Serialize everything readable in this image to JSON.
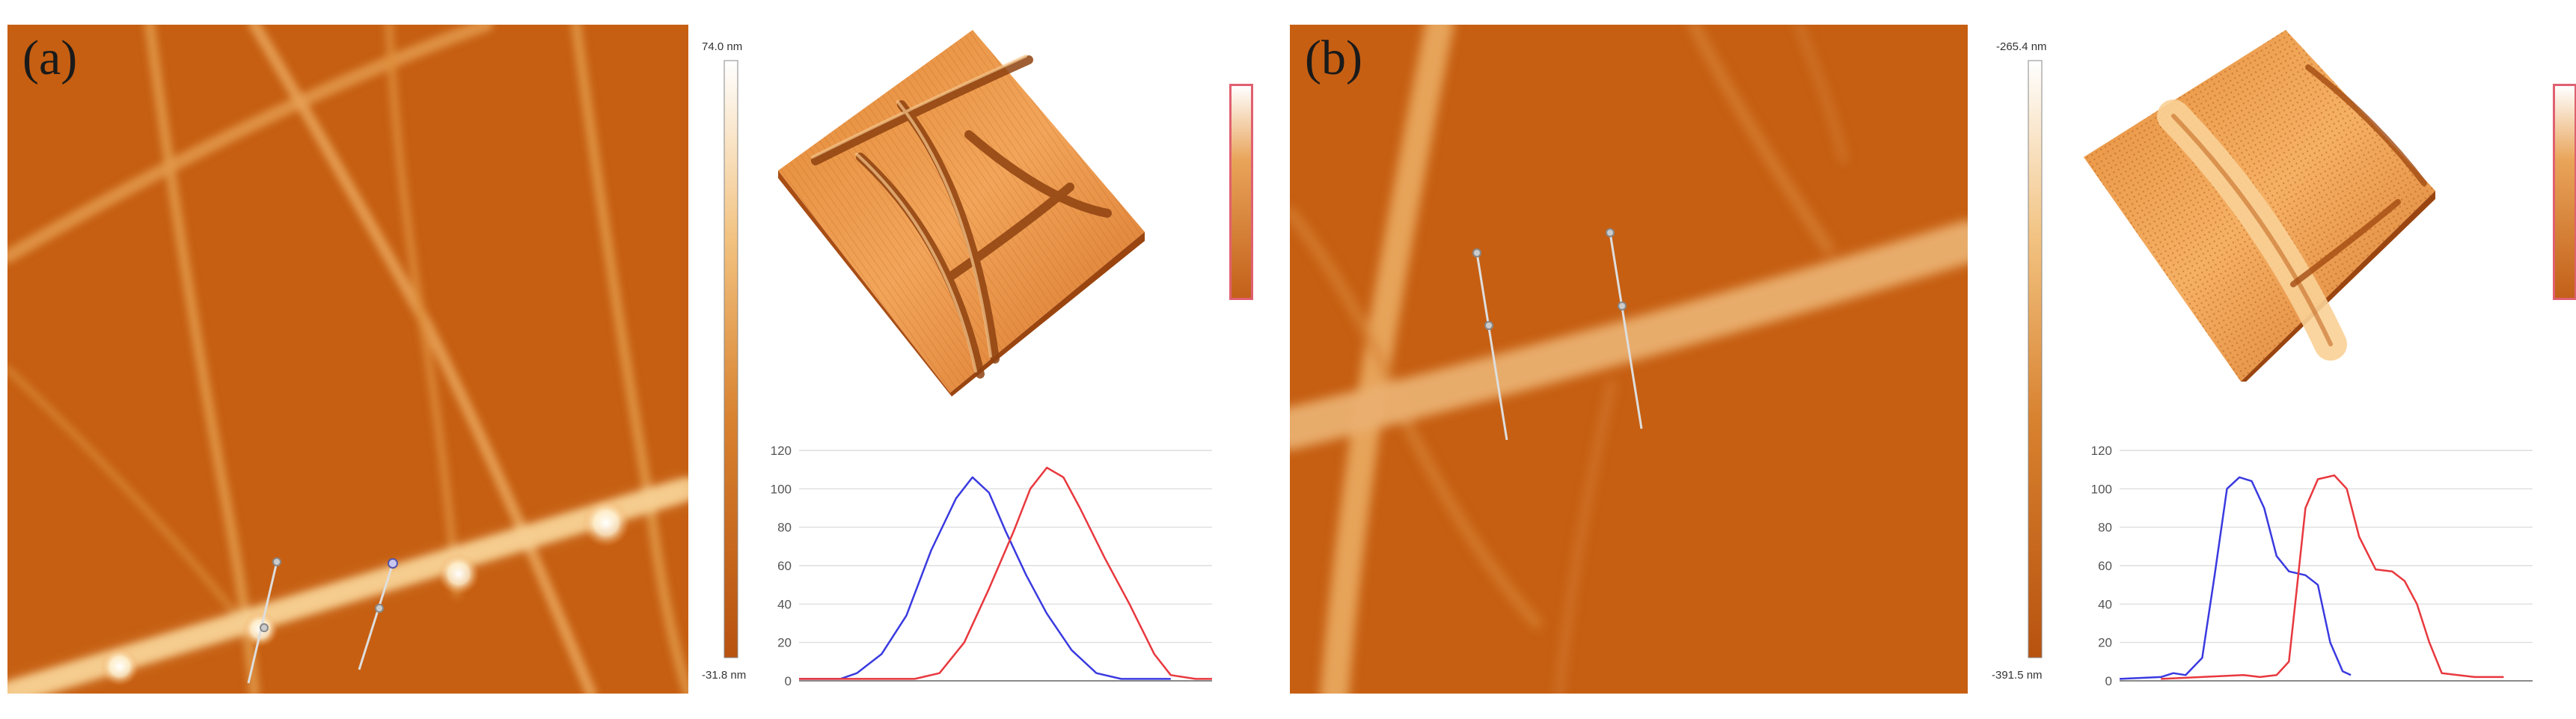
{
  "panels": [
    {
      "label": "(a)",
      "scale_max": "74.0 nm",
      "scale_min": "-31.8 nm"
    },
    {
      "label": "(b)",
      "scale_max": "-265.4 nm",
      "scale_min": "-391.5 nm"
    }
  ],
  "colors": {
    "afm_base": "#c65f12",
    "scale_top": "#ffffff",
    "scale_bottom": "#b8520f",
    "line_blue": "#3a3ae0",
    "line_red": "#e8383e",
    "legend_border": "#e06070"
  },
  "chart_data": [
    {
      "type": "line",
      "panel": "(a)",
      "ylim": [
        0,
        120
      ],
      "yticks": [
        "0",
        "20",
        "40",
        "60",
        "80",
        "100",
        "120"
      ],
      "grid": true,
      "series": [
        {
          "color": "blue",
          "values": [
            [
              0,
              1
            ],
            [
              10,
              1
            ],
            [
              14,
              4
            ],
            [
              20,
              14
            ],
            [
              26,
              34
            ],
            [
              32,
              68
            ],
            [
              38,
              95
            ],
            [
              42,
              106
            ],
            [
              46,
              98
            ],
            [
              50,
              78
            ],
            [
              55,
              55
            ],
            [
              60,
              35
            ],
            [
              66,
              16
            ],
            [
              72,
              4
            ],
            [
              78,
              1
            ],
            [
              90,
              1
            ]
          ]
        },
        {
          "color": "red",
          "values": [
            [
              0,
              1
            ],
            [
              28,
              1
            ],
            [
              34,
              4
            ],
            [
              40,
              20
            ],
            [
              46,
              48
            ],
            [
              52,
              78
            ],
            [
              56,
              100
            ],
            [
              60,
              111
            ],
            [
              64,
              106
            ],
            [
              68,
              90
            ],
            [
              74,
              64
            ],
            [
              80,
              40
            ],
            [
              86,
              14
            ],
            [
              90,
              3
            ],
            [
              96,
              1
            ],
            [
              100,
              1
            ]
          ]
        }
      ]
    },
    {
      "type": "line",
      "panel": "(b)",
      "ylim": [
        0,
        120
      ],
      "yticks": [
        "0",
        "20",
        "40",
        "60",
        "80",
        "100",
        "120"
      ],
      "grid": true,
      "series": [
        {
          "color": "blue",
          "values": [
            [
              0,
              1
            ],
            [
              10,
              2
            ],
            [
              13,
              4
            ],
            [
              16,
              3
            ],
            [
              20,
              12
            ],
            [
              23,
              55
            ],
            [
              26,
              100
            ],
            [
              29,
              106
            ],
            [
              32,
              104
            ],
            [
              35,
              90
            ],
            [
              38,
              65
            ],
            [
              41,
              57
            ],
            [
              45,
              55
            ],
            [
              48,
              50
            ],
            [
              51,
              20
            ],
            [
              54,
              5
            ],
            [
              56,
              3
            ]
          ]
        },
        {
          "color": "red",
          "values": [
            [
              10,
              1
            ],
            [
              30,
              3
            ],
            [
              34,
              2
            ],
            [
              38,
              3
            ],
            [
              41,
              10
            ],
            [
              43,
              50
            ],
            [
              45,
              90
            ],
            [
              48,
              105
            ],
            [
              52,
              107
            ],
            [
              55,
              100
            ],
            [
              58,
              75
            ],
            [
              62,
              58
            ],
            [
              66,
              57
            ],
            [
              69,
              52
            ],
            [
              72,
              40
            ],
            [
              75,
              20
            ],
            [
              78,
              4
            ],
            [
              86,
              2
            ],
            [
              93,
              2
            ]
          ]
        }
      ]
    }
  ]
}
